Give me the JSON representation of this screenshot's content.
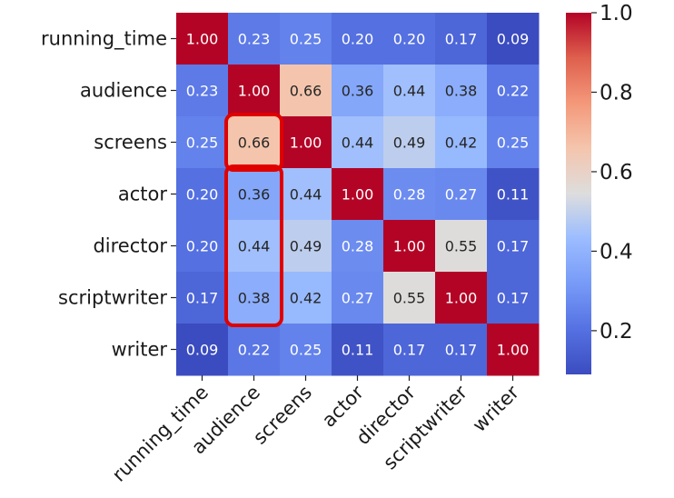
{
  "chart_data": {
    "type": "heatmap",
    "colormap": "coolwarm",
    "row_labels": [
      "running_time",
      "audience",
      "screens",
      "actor",
      "director",
      "scriptwriter",
      "writer"
    ],
    "col_labels": [
      "running_time",
      "audience",
      "screens",
      "actor",
      "director",
      "scriptwriter",
      "writer"
    ],
    "values": [
      [
        1.0,
        0.23,
        0.25,
        0.2,
        0.2,
        0.17,
        0.09
      ],
      [
        0.23,
        1.0,
        0.66,
        0.36,
        0.44,
        0.38,
        0.22
      ],
      [
        0.25,
        0.66,
        1.0,
        0.44,
        0.49,
        0.42,
        0.25
      ],
      [
        0.2,
        0.36,
        0.44,
        1.0,
        0.28,
        0.27,
        0.11
      ],
      [
        0.2,
        0.44,
        0.49,
        0.28,
        1.0,
        0.55,
        0.17
      ],
      [
        0.17,
        0.38,
        0.42,
        0.27,
        0.55,
        1.0,
        0.17
      ],
      [
        0.09,
        0.22,
        0.25,
        0.11,
        0.17,
        0.17,
        1.0
      ]
    ],
    "value_range": [
      0.09,
      1.0
    ],
    "colorbar": {
      "ticks": [
        0.2,
        0.4,
        0.6,
        0.8,
        1.0
      ],
      "tick_labels": [
        "0.2",
        "0.4",
        "0.6",
        "0.8",
        "1.0"
      ]
    },
    "highlights": [
      {
        "col": "audience",
        "rows": [
          "screens"
        ],
        "color": "#e00000"
      },
      {
        "col": "audience",
        "rows": [
          "actor",
          "director",
          "scriptwriter"
        ],
        "color": "#e00000"
      }
    ]
  }
}
